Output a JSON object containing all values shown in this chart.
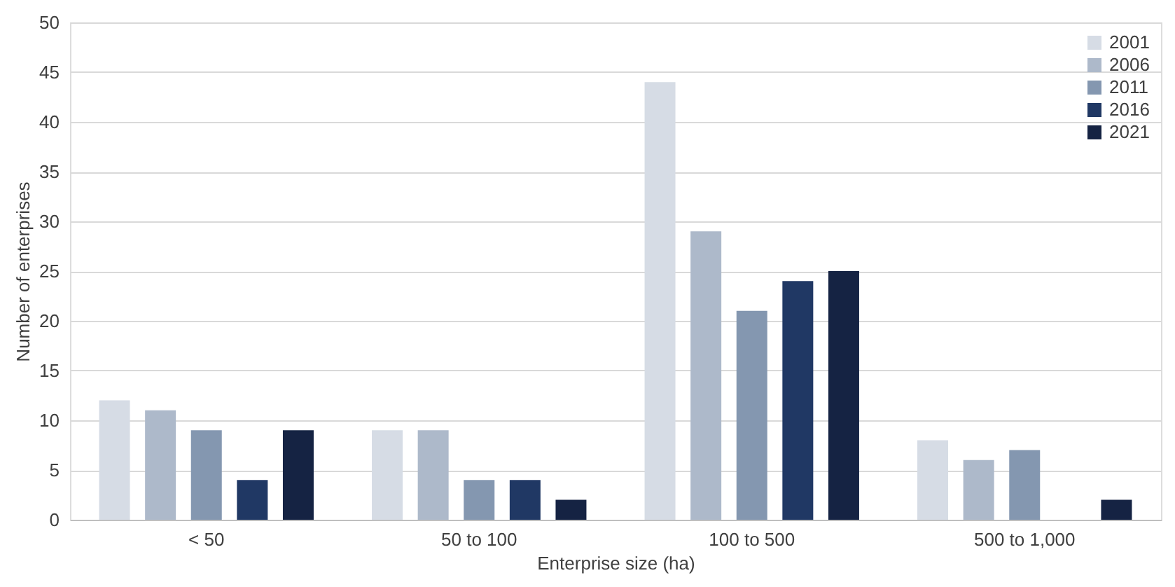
{
  "chart_data": {
    "type": "bar",
    "xlabel": "Enterprise size (ha)",
    "ylabel": "Number of enterprises",
    "categories": [
      "< 50",
      "50 to 100",
      "100 to 500",
      "500 to 1,000"
    ],
    "series": [
      {
        "name": "2001",
        "color": "#d6dce5",
        "values": [
          12,
          9,
          44,
          8
        ]
      },
      {
        "name": "2006",
        "color": "#adb9ca",
        "values": [
          11,
          9,
          29,
          6
        ]
      },
      {
        "name": "2011",
        "color": "#8497b0",
        "values": [
          9,
          4,
          21,
          7
        ]
      },
      {
        "name": "2016",
        "color": "#203864",
        "values": [
          4,
          4,
          24,
          0
        ]
      },
      {
        "name": "2021",
        "color": "#152343",
        "values": [
          9,
          2,
          25,
          2
        ]
      }
    ],
    "ylim": [
      0,
      50
    ],
    "yticks": [
      0,
      5,
      10,
      15,
      20,
      25,
      30,
      35,
      40,
      45,
      50
    ],
    "grid": "y",
    "legend": "top right"
  }
}
